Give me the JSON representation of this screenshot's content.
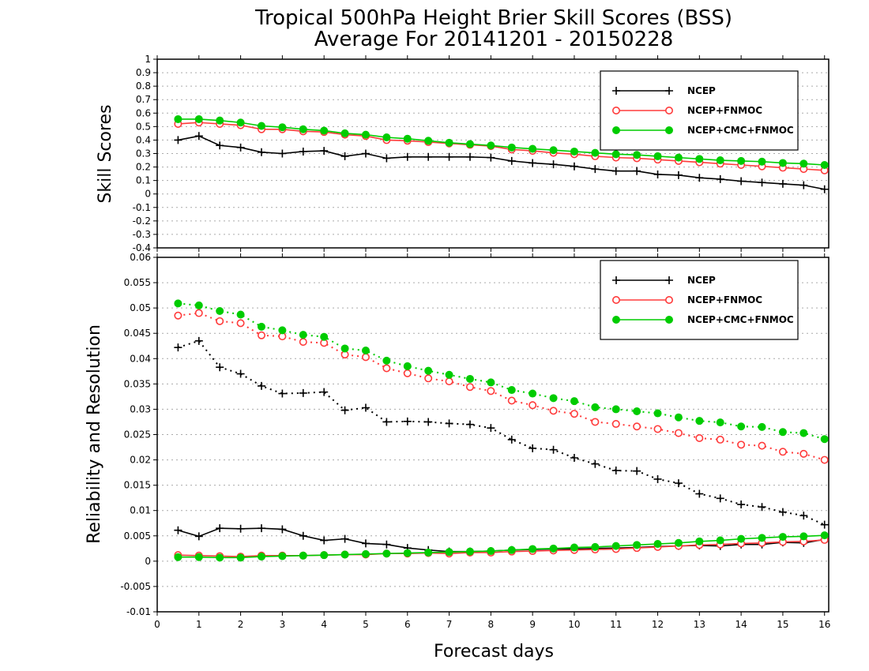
{
  "title_line1": "Tropical 500hPa Height Brier Skill Scores (BSS)",
  "title_line2": "Average For 20141201 - 20150228",
  "colors": {
    "NCEP": "#000000",
    "NCEP+FNMOC": "#ff3b3b",
    "NCEP+CMC+FNMOC": "#00cc00"
  },
  "chart_data": [
    {
      "type": "line",
      "ylabel": "Skill Scores",
      "xlabel": "",
      "xlim": [
        0,
        16.1
      ],
      "ylim": [
        -0.4,
        1
      ],
      "xticks": [
        "0",
        "1",
        "2",
        "3",
        "4",
        "5",
        "6",
        "7",
        "8",
        "9",
        "10",
        "11",
        "12",
        "13",
        "14",
        "15",
        "16"
      ],
      "yticks": [
        "-0.4",
        "-0.3",
        "-0.2",
        "-0.1",
        "0",
        "0.1",
        "0.2",
        "0.3",
        "0.4",
        "0.5",
        "0.6",
        "0.7",
        "0.8",
        "0.9",
        "1"
      ],
      "grid": true,
      "legend": "top-right",
      "x": [
        0.5,
        1,
        1.5,
        2,
        2.5,
        3,
        3.5,
        4,
        4.5,
        5,
        5.5,
        6,
        6.5,
        7,
        7.5,
        8,
        8.5,
        9,
        9.5,
        10,
        10.5,
        11,
        11.5,
        12,
        12.5,
        13,
        13.5,
        14,
        14.5,
        15,
        15.5,
        16
      ],
      "series": [
        {
          "name": "NCEP",
          "line": "solid",
          "values": [
            0.4,
            0.43,
            0.36,
            0.345,
            0.31,
            0.3,
            0.315,
            0.32,
            0.28,
            0.3,
            0.265,
            0.275,
            0.275,
            0.275,
            0.275,
            0.27,
            0.245,
            0.23,
            0.22,
            0.205,
            0.185,
            0.17,
            0.17,
            0.145,
            0.14,
            0.12,
            0.11,
            0.095,
            0.085,
            0.075,
            0.065,
            0.035
          ]
        },
        {
          "name": "NCEP+FNMOC",
          "line": "solid",
          "values": [
            0.52,
            0.53,
            0.52,
            0.51,
            0.48,
            0.48,
            0.465,
            0.46,
            0.44,
            0.43,
            0.4,
            0.395,
            0.385,
            0.375,
            0.365,
            0.355,
            0.33,
            0.32,
            0.305,
            0.295,
            0.28,
            0.27,
            0.265,
            0.255,
            0.245,
            0.235,
            0.225,
            0.215,
            0.205,
            0.195,
            0.185,
            0.175
          ]
        },
        {
          "name": "NCEP+CMC+FNMOC",
          "line": "solid",
          "values": [
            0.555,
            0.555,
            0.545,
            0.53,
            0.505,
            0.495,
            0.48,
            0.47,
            0.45,
            0.44,
            0.42,
            0.41,
            0.395,
            0.38,
            0.37,
            0.36,
            0.345,
            0.335,
            0.325,
            0.315,
            0.305,
            0.295,
            0.29,
            0.28,
            0.27,
            0.26,
            0.25,
            0.245,
            0.24,
            0.23,
            0.225,
            0.215
          ]
        }
      ]
    },
    {
      "type": "line",
      "ylabel": "Reliability and Resolution",
      "xlabel": "Forecast days",
      "xlim": [
        0,
        16.1
      ],
      "ylim": [
        -0.01,
        0.06
      ],
      "xticks": [
        "0",
        "1",
        "2",
        "3",
        "4",
        "5",
        "6",
        "7",
        "8",
        "9",
        "10",
        "11",
        "12",
        "13",
        "14",
        "15",
        "16"
      ],
      "yticks": [
        "-0.01",
        "-0.005",
        "0",
        "0.005",
        "0.01",
        "0.015",
        "0.02",
        "0.025",
        "0.03",
        "0.035",
        "0.04",
        "0.045",
        "0.05",
        "0.055",
        "0.06"
      ],
      "grid": true,
      "legend": "top-right",
      "x": [
        0.5,
        1,
        1.5,
        2,
        2.5,
        3,
        3.5,
        4,
        4.5,
        5,
        5.5,
        6,
        6.5,
        7,
        7.5,
        8,
        8.5,
        9,
        9.5,
        10,
        10.5,
        11,
        11.5,
        12,
        12.5,
        13,
        13.5,
        14,
        14.5,
        15,
        15.5,
        16
      ],
      "series": [
        {
          "name": "NCEP",
          "line": "dotted",
          "role": "resolution",
          "values": [
            0.0422,
            0.0435,
            0.0383,
            0.037,
            0.0346,
            0.0331,
            0.0332,
            0.0334,
            0.0298,
            0.0303,
            0.0275,
            0.0276,
            0.0275,
            0.0272,
            0.027,
            0.0263,
            0.024,
            0.0223,
            0.022,
            0.0204,
            0.0192,
            0.0179,
            0.0178,
            0.0162,
            0.0154,
            0.0133,
            0.0124,
            0.0112,
            0.0107,
            0.0097,
            0.009,
            0.0072
          ]
        },
        {
          "name": "NCEP+FNMOC",
          "line": "dotted",
          "role": "resolution",
          "values": [
            0.0485,
            0.049,
            0.0474,
            0.047,
            0.0446,
            0.0444,
            0.0433,
            0.0431,
            0.0408,
            0.0403,
            0.0381,
            0.0371,
            0.0361,
            0.0355,
            0.0344,
            0.0336,
            0.0317,
            0.0308,
            0.0297,
            0.0291,
            0.0275,
            0.0271,
            0.0266,
            0.0261,
            0.0253,
            0.0243,
            0.024,
            0.023,
            0.0228,
            0.0216,
            0.0212,
            0.02
          ]
        },
        {
          "name": "NCEP+CMC+FNMOC",
          "line": "dotted",
          "role": "resolution",
          "values": [
            0.0509,
            0.0505,
            0.0494,
            0.0487,
            0.0463,
            0.0456,
            0.0447,
            0.0443,
            0.042,
            0.0416,
            0.0396,
            0.0385,
            0.0376,
            0.0368,
            0.036,
            0.0353,
            0.0338,
            0.0331,
            0.0322,
            0.0316,
            0.0304,
            0.03,
            0.0296,
            0.0292,
            0.0284,
            0.0277,
            0.0274,
            0.0266,
            0.0265,
            0.0255,
            0.0253,
            0.0241
          ]
        },
        {
          "name": "NCEP",
          "line": "solid",
          "role": "reliability",
          "values": [
            0.0061,
            0.0049,
            0.0065,
            0.0064,
            0.0065,
            0.0063,
            0.005,
            0.0041,
            0.0044,
            0.0035,
            0.0033,
            0.0026,
            0.0022,
            0.0019,
            0.0019,
            0.002,
            0.0022,
            0.0023,
            0.0024,
            0.0024,
            0.0025,
            0.0026,
            0.0027,
            0.0029,
            0.003,
            0.0031,
            0.003,
            0.0033,
            0.0033,
            0.0037,
            0.0036,
            0.0043
          ]
        },
        {
          "name": "NCEP+FNMOC",
          "line": "solid",
          "role": "reliability",
          "values": [
            0.0012,
            0.0011,
            0.001,
            0.0009,
            0.0011,
            0.0011,
            0.0011,
            0.0012,
            0.0013,
            0.0013,
            0.0015,
            0.0015,
            0.0016,
            0.0015,
            0.0017,
            0.0017,
            0.0019,
            0.002,
            0.0021,
            0.0022,
            0.0023,
            0.0024,
            0.0026,
            0.0028,
            0.003,
            0.0032,
            0.0033,
            0.0035,
            0.0036,
            0.0038,
            0.0039,
            0.0042
          ]
        },
        {
          "name": "NCEP+CMC+FNMOC",
          "line": "solid",
          "role": "reliability",
          "values": [
            0.0008,
            0.0008,
            0.0007,
            0.0007,
            0.0009,
            0.001,
            0.0011,
            0.0012,
            0.0013,
            0.0014,
            0.0015,
            0.0016,
            0.0017,
            0.0018,
            0.0019,
            0.002,
            0.0022,
            0.0024,
            0.0025,
            0.0027,
            0.0028,
            0.003,
            0.0032,
            0.0034,
            0.0036,
            0.0039,
            0.0041,
            0.0044,
            0.0046,
            0.0048,
            0.0049,
            0.0051
          ]
        }
      ]
    }
  ]
}
